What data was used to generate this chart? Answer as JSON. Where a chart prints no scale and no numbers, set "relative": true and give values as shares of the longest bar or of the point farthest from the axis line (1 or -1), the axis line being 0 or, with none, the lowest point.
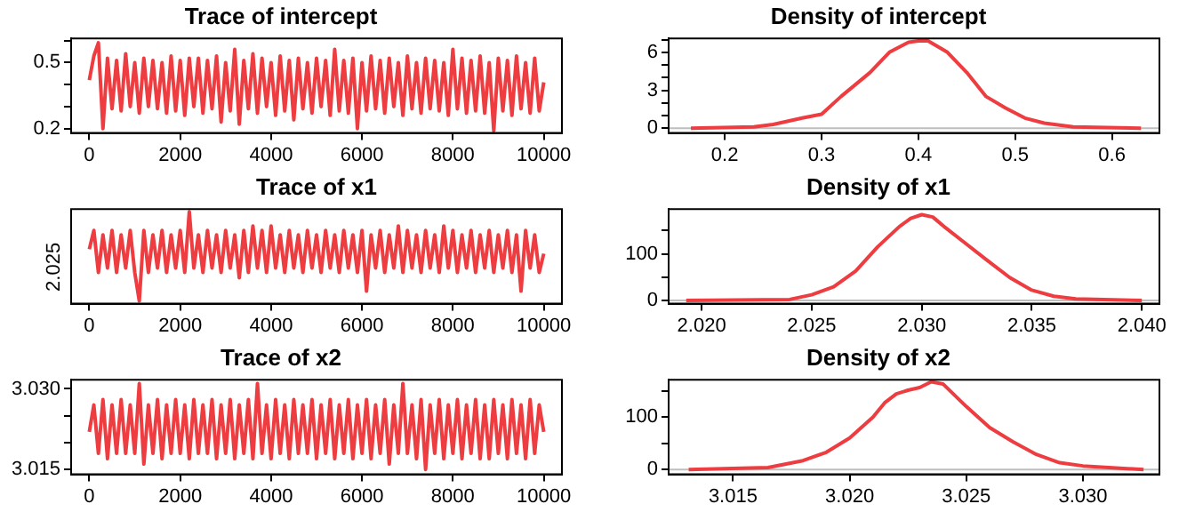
{
  "chart_data": [
    {
      "type": "line",
      "title": "Trace of intercept",
      "x": [
        0,
        100,
        200,
        300,
        400,
        500,
        600,
        700,
        800,
        900,
        1000,
        1100,
        1200,
        1300,
        1400,
        1500,
        1600,
        1700,
        1800,
        1900,
        2000,
        2100,
        2200,
        2300,
        2400,
        2500,
        2600,
        2700,
        2800,
        2900,
        3000,
        3100,
        3200,
        3300,
        3400,
        3500,
        3600,
        3700,
        3800,
        3900,
        4000,
        4100,
        4200,
        4300,
        4400,
        4500,
        4600,
        4700,
        4800,
        4900,
        5000,
        5100,
        5200,
        5300,
        5400,
        5500,
        5600,
        5700,
        5800,
        5900,
        6000,
        6100,
        6200,
        6300,
        6400,
        6500,
        6600,
        6700,
        6800,
        6900,
        7000,
        7100,
        7200,
        7300,
        7400,
        7500,
        7600,
        7700,
        7800,
        7900,
        8000,
        8100,
        8200,
        8300,
        8400,
        8500,
        8600,
        8700,
        8800,
        8900,
        9000,
        9100,
        9200,
        9300,
        9400,
        9500,
        9600,
        9700,
        9800,
        9900,
        10000
      ],
      "series": [
        {
          "color": "#ee3d41",
          "values": [
            0.42,
            0.53,
            0.59,
            0.2,
            0.52,
            0.29,
            0.51,
            0.28,
            0.54,
            0.3,
            0.5,
            0.27,
            0.52,
            0.3,
            0.51,
            0.29,
            0.5,
            0.27,
            0.53,
            0.28,
            0.51,
            0.26,
            0.52,
            0.3,
            0.52,
            0.27,
            0.51,
            0.29,
            0.53,
            0.23,
            0.5,
            0.28,
            0.56,
            0.22,
            0.51,
            0.29,
            0.54,
            0.27,
            0.52,
            0.3,
            0.5,
            0.26,
            0.53,
            0.28,
            0.51,
            0.24,
            0.52,
            0.29,
            0.5,
            0.27,
            0.52,
            0.3,
            0.51,
            0.26,
            0.56,
            0.28,
            0.51,
            0.27,
            0.52,
            0.2,
            0.5,
            0.28,
            0.53,
            0.29,
            0.51,
            0.27,
            0.52,
            0.3,
            0.5,
            0.26,
            0.53,
            0.29,
            0.5,
            0.27,
            0.52,
            0.29,
            0.51,
            0.28,
            0.5,
            0.26,
            0.56,
            0.29,
            0.52,
            0.27,
            0.51,
            0.28,
            0.53,
            0.27,
            0.5,
            0.19,
            0.52,
            0.28,
            0.51,
            0.26,
            0.53,
            0.29,
            0.5,
            0.27,
            0.52,
            0.28,
            0.41
          ]
        }
      ],
      "xlim": [
        -400,
        10400
      ],
      "xticks": [
        0,
        2000,
        4000,
        6000,
        8000,
        10000
      ],
      "ylim": [
        0.18,
        0.61
      ],
      "yticks": [
        0.2,
        {
          "value": 0.3,
          "label": null
        },
        {
          "value": 0.4,
          "label": null
        },
        0.5,
        {
          "value": 0.6,
          "label": null
        }
      ],
      "grid": false,
      "legend": false,
      "marker": "none",
      "line_style": "solid"
    },
    {
      "type": "line",
      "title": "Density of intercept",
      "x": [
        0.165,
        0.23,
        0.25,
        0.28,
        0.3,
        0.32,
        0.35,
        0.37,
        0.39,
        0.4,
        0.41,
        0.43,
        0.45,
        0.47,
        0.49,
        0.51,
        0.53,
        0.56,
        0.63
      ],
      "series": [
        {
          "color": "#ee3d41",
          "values": [
            0,
            0.1,
            0.3,
            0.8,
            1.1,
            2.5,
            4.4,
            6.0,
            6.8,
            6.9,
            6.9,
            6.0,
            4.4,
            2.5,
            1.6,
            0.8,
            0.4,
            0.1,
            0
          ]
        }
      ],
      "xlim": [
        0.142,
        0.649
      ],
      "xticks": [
        0.2,
        0.3,
        0.4,
        0.5,
        0.6
      ],
      "ylim": [
        -0.38,
        7.1
      ],
      "yticks": [
        0,
        {
          "value": 1,
          "label": null
        },
        {
          "value": 2,
          "label": null
        },
        3,
        {
          "value": 4,
          "label": null
        },
        {
          "value": 5,
          "label": null
        },
        6,
        {
          "value": 7,
          "label": null
        }
      ],
      "ref_lines": [
        {
          "axis": "y",
          "value": 0,
          "color": "#bebebe"
        }
      ],
      "grid": false,
      "legend": false,
      "marker": "none",
      "line_style": "solid"
    },
    {
      "type": "line",
      "title": "Trace of x1",
      "x": [
        0,
        100,
        200,
        300,
        400,
        500,
        600,
        700,
        800,
        900,
        1000,
        1100,
        1200,
        1300,
        1400,
        1500,
        1600,
        1700,
        1800,
        1900,
        2000,
        2100,
        2200,
        2300,
        2400,
        2500,
        2600,
        2700,
        2800,
        2900,
        3000,
        3100,
        3200,
        3300,
        3400,
        3500,
        3600,
        3700,
        3800,
        3900,
        4000,
        4100,
        4200,
        4300,
        4400,
        4500,
        4600,
        4700,
        4800,
        4900,
        5000,
        5100,
        5200,
        5300,
        5400,
        5500,
        5600,
        5700,
        5800,
        5900,
        6000,
        6100,
        6200,
        6300,
        6400,
        6500,
        6600,
        6700,
        6800,
        6900,
        7000,
        7100,
        7200,
        7300,
        7400,
        7500,
        7600,
        7700,
        7800,
        7900,
        8000,
        8100,
        8200,
        8300,
        8400,
        8500,
        8600,
        8700,
        8800,
        8900,
        9000,
        9100,
        9200,
        9300,
        9400,
        9500,
        9600,
        9700,
        9800,
        9900,
        10000
      ],
      "series": [
        {
          "color": "#ee3d41",
          "values": [
            0.58,
            0.79,
            0.32,
            0.74,
            0.37,
            0.79,
            0.32,
            0.74,
            0.37,
            0.79,
            0.32,
            0,
            0.79,
            0.32,
            0.74,
            0.37,
            0.79,
            0.32,
            0.74,
            0.37,
            0.79,
            0.32,
            1,
            0.37,
            0.74,
            0.32,
            0.79,
            0.37,
            0.74,
            0.32,
            0.79,
            0.37,
            0.74,
            0.26,
            0.79,
            0.32,
            0.84,
            0.37,
            0.79,
            0.32,
            0.84,
            0.37,
            0.74,
            0.32,
            0.79,
            0.37,
            0.74,
            0.32,
            0.79,
            0.37,
            0.74,
            0.32,
            0.79,
            0.37,
            0.74,
            0.32,
            0.79,
            0.37,
            0.74,
            0.32,
            0.79,
            0.11,
            0.74,
            0.37,
            0.79,
            0.32,
            0.74,
            0.37,
            0.84,
            0.32,
            0.79,
            0.37,
            0.74,
            0.32,
            0.79,
            0.37,
            0.74,
            0.32,
            0.84,
            0.37,
            0.79,
            0.32,
            0.74,
            0.37,
            0.79,
            0.32,
            0.74,
            0.37,
            0.79,
            0.32,
            0.74,
            0.37,
            0.79,
            0.32,
            0.74,
            0.11,
            0.79,
            0.37,
            0.74,
            0.32,
            0.53
          ]
        }
      ],
      "xlim": [
        -400,
        10400
      ],
      "xticks": [
        0,
        2000,
        4000,
        6000,
        8000,
        10000
      ],
      "relative": true,
      "annotations": [
        "2.025"
      ],
      "grid": false,
      "legend": false,
      "marker": "none",
      "line_style": "solid"
    },
    {
      "type": "line",
      "title": "Density of x1",
      "x": [
        2.0193,
        2.024,
        2.025,
        2.026,
        2.027,
        2.028,
        2.029,
        2.0295,
        2.03,
        2.0305,
        2.031,
        2.032,
        2.033,
        2.034,
        2.035,
        2.036,
        2.037,
        2.04
      ],
      "series": [
        {
          "color": "#ee3d41",
          "values": [
            0,
            2,
            12,
            29,
            63,
            115,
            159,
            176,
            184,
            179,
            159,
            122,
            85,
            49,
            22,
            9,
            3,
            0
          ]
        }
      ],
      "xlim": [
        2.0185,
        2.0408
      ],
      "xticks": [
        {
          "value": 2.02,
          "label": "2.020"
        },
        2.025,
        {
          "value": 2.03,
          "label": "2.030"
        },
        2.035,
        {
          "value": 2.04,
          "label": "2.040"
        }
      ],
      "ylim": [
        -7,
        196
      ],
      "yticks": [
        0,
        {
          "value": 50,
          "label": null
        },
        100,
        {
          "value": 150,
          "label": null
        }
      ],
      "ref_lines": [
        {
          "axis": "y",
          "value": 0,
          "color": "#bebebe"
        }
      ],
      "grid": false,
      "legend": false,
      "marker": "none",
      "line_style": "solid"
    },
    {
      "type": "line",
      "title": "Trace of x2",
      "x": [
        0,
        100,
        200,
        300,
        400,
        500,
        600,
        700,
        800,
        900,
        1000,
        1100,
        1200,
        1300,
        1400,
        1500,
        1600,
        1700,
        1800,
        1900,
        2000,
        2100,
        2200,
        2300,
        2400,
        2500,
        2600,
        2700,
        2800,
        2900,
        3000,
        3100,
        3200,
        3300,
        3400,
        3500,
        3600,
        3700,
        3800,
        3900,
        4000,
        4100,
        4200,
        4300,
        4400,
        4500,
        4600,
        4700,
        4800,
        4900,
        5000,
        5100,
        5200,
        5300,
        5400,
        5500,
        5600,
        5700,
        5800,
        5900,
        6000,
        6100,
        6200,
        6300,
        6400,
        6500,
        6600,
        6700,
        6800,
        6900,
        7000,
        7100,
        7200,
        7300,
        7400,
        7500,
        7600,
        7700,
        7800,
        7900,
        8000,
        8100,
        8200,
        8300,
        8400,
        8500,
        8600,
        8700,
        8800,
        8900,
        9000,
        9100,
        9200,
        9300,
        9400,
        9500,
        9600,
        9700,
        9800,
        9900,
        10000
      ],
      "series": [
        {
          "color": "#ee3d41",
          "values": [
            3.022,
            3.027,
            3.018,
            3.028,
            3.017,
            3.027,
            3.018,
            3.028,
            3.018,
            3.027,
            3.018,
            3.031,
            3.016,
            3.027,
            3.018,
            3.028,
            3.017,
            3.027,
            3.018,
            3.028,
            3.018,
            3.027,
            3.017,
            3.028,
            3.018,
            3.027,
            3.018,
            3.028,
            3.017,
            3.027,
            3.018,
            3.028,
            3.017,
            3.027,
            3.018,
            3.028,
            3.017,
            3.031,
            3.018,
            3.027,
            3.017,
            3.028,
            3.018,
            3.027,
            3.017,
            3.028,
            3.018,
            3.027,
            3.018,
            3.028,
            3.017,
            3.027,
            3.018,
            3.028,
            3.017,
            3.027,
            3.018,
            3.028,
            3.017,
            3.027,
            3.018,
            3.028,
            3.017,
            3.027,
            3.018,
            3.028,
            3.016,
            3.027,
            3.018,
            3.031,
            3.018,
            3.027,
            3.017,
            3.028,
            3.015,
            3.027,
            3.018,
            3.028,
            3.017,
            3.027,
            3.018,
            3.028,
            3.017,
            3.027,
            3.018,
            3.028,
            3.017,
            3.027,
            3.017,
            3.028,
            3.018,
            3.027,
            3.017,
            3.028,
            3.018,
            3.027,
            3.017,
            3.028,
            3.018,
            3.027,
            3.022
          ]
        }
      ],
      "xlim": [
        -400,
        10400
      ],
      "xticks": [
        0,
        2000,
        4000,
        6000,
        8000,
        10000
      ],
      "ylim": [
        3.0141,
        3.0317
      ],
      "yticks": [
        3.015,
        {
          "value": 3.02,
          "label": null
        },
        {
          "value": 3.025,
          "label": null
        },
        {
          "value": 3.03,
          "label": "3.030"
        }
      ],
      "grid": false,
      "legend": false,
      "marker": "none",
      "line_style": "solid"
    },
    {
      "type": "line",
      "title": "Density of x2",
      "x": [
        3.0131,
        3.0165,
        3.018,
        3.019,
        3.02,
        3.021,
        3.0215,
        3.022,
        3.0225,
        3.023,
        3.0235,
        3.024,
        3.025,
        3.026,
        3.027,
        3.028,
        3.029,
        3.03,
        3.0326
      ],
      "series": [
        {
          "color": "#ee3d41",
          "values": [
            0,
            4,
            17,
            33,
            60,
            100,
            127,
            144,
            151,
            156,
            167,
            163,
            120,
            80,
            53,
            29,
            13,
            7,
            0
          ]
        }
      ],
      "xlim": [
        3.01224,
        3.03328
      ],
      "xticks": [
        3.015,
        {
          "value": 3.02,
          "label": "3.020"
        },
        3.025,
        {
          "value": 3.03,
          "label": "3.030"
        }
      ],
      "ylim": [
        -9,
        171
      ],
      "yticks": [
        0,
        {
          "value": 50,
          "label": null
        },
        100,
        {
          "value": 150,
          "label": null
        }
      ],
      "ref_lines": [
        {
          "axis": "y",
          "value": 0,
          "color": "#bebebe"
        }
      ],
      "grid": false,
      "legend": false,
      "marker": "none",
      "line_style": "solid"
    }
  ]
}
